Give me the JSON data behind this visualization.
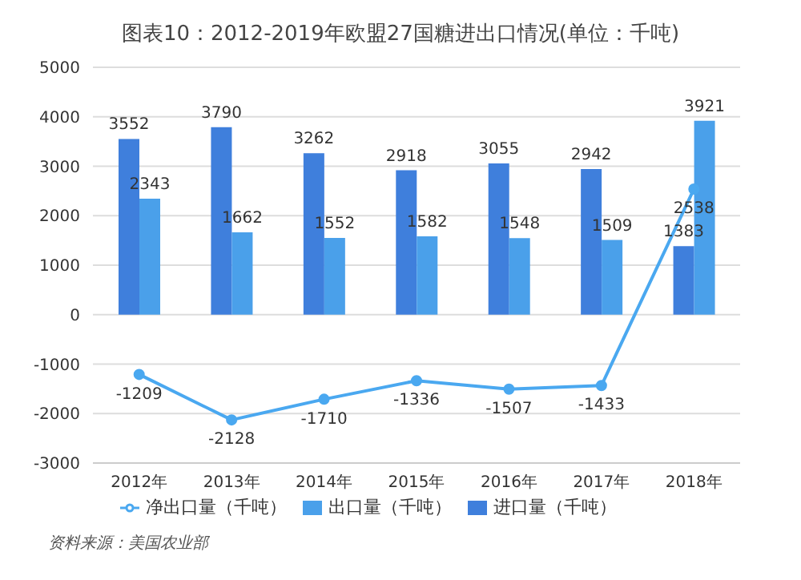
{
  "chart_data": {
    "type": "bar",
    "title": "图表10：2012-2019年欧盟27国糖进出口情况(单位：千吨)",
    "categories": [
      "2012年",
      "2013年",
      "2014年",
      "2015年",
      "2016年",
      "2017年",
      "2018年"
    ],
    "series": [
      {
        "name": "进口量（千吨）",
        "color": "#3f7fdc",
        "values": [
          3552,
          3790,
          3262,
          2918,
          3055,
          2942,
          1383
        ]
      },
      {
        "name": "出口量（千吨）",
        "color": "#4aa0ea",
        "values": [
          2343,
          1662,
          1552,
          1582,
          1548,
          1509,
          3921
        ]
      },
      {
        "name": "净出口量（千吨）",
        "type": "line",
        "color": "#4aa8f0",
        "marker": "circle",
        "values": [
          -1209,
          -2128,
          -1710,
          -1336,
          -1507,
          -1433,
          2538
        ]
      }
    ],
    "ylim": [
      -3000,
      5000
    ],
    "yticks": [
      -3000,
      -2000,
      -1000,
      0,
      1000,
      2000,
      3000,
      4000,
      5000
    ],
    "grid": "y",
    "legend": "bottom",
    "data_labels": true,
    "annotations": [
      "资料来源：美国农业部"
    ]
  }
}
